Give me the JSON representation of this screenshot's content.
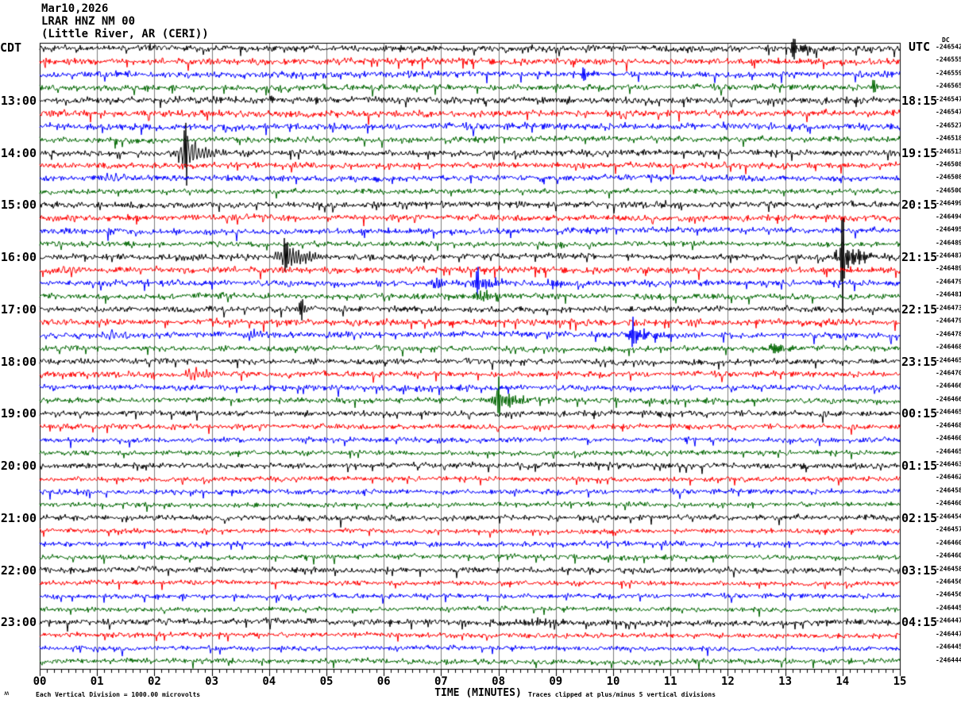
{
  "title": {
    "date": "Mar10,2026",
    "station": "LRAR HNZ NM 00",
    "location": "(Little River, AR (CERI))"
  },
  "axes": {
    "left_tz": "CDT",
    "right_tz": "UTC",
    "dc": "DC",
    "corner_mark": "ʍ"
  },
  "footer": {
    "left": "Each Vertical Division = 1000.00 microvolts",
    "right": "Traces clipped at plus/minus 5 vertical divisions"
  },
  "chart_data": {
    "type": "line",
    "subtype": "helicorder-seismogram",
    "title": "LRAR HNZ NM 00 (Little River, AR (CERI)) Mar10,2026",
    "xlabel": "TIME (MINUTES)",
    "x_range": [
      0,
      15
    ],
    "minutes_per_line": 15,
    "x_tick_labels": [
      "00",
      "01",
      "02",
      "03",
      "04",
      "05",
      "06",
      "07",
      "08",
      "09",
      "10",
      "11",
      "12",
      "13",
      "14",
      "15"
    ],
    "grid": "vertical-minute-lines",
    "trace_colors": {
      "black": "#000000",
      "red": "#ff0000",
      "blue": "#0000ff",
      "green": "#006600"
    },
    "left_hour_labels": [
      {
        "row": 4,
        "label": "13:00"
      },
      {
        "row": 8,
        "label": "14:00"
      },
      {
        "row": 12,
        "label": "15:00"
      },
      {
        "row": 16,
        "label": "16:00"
      },
      {
        "row": 20,
        "label": "17:00"
      },
      {
        "row": 24,
        "label": "18:00"
      },
      {
        "row": 28,
        "label": "19:00"
      },
      {
        "row": 32,
        "label": "20:00"
      },
      {
        "row": 36,
        "label": "21:00"
      },
      {
        "row": 40,
        "label": "22:00"
      },
      {
        "row": 44,
        "label": "23:00"
      }
    ],
    "right_hour_labels": [
      {
        "row": 4,
        "label": "18:15"
      },
      {
        "row": 8,
        "label": "19:15"
      },
      {
        "row": 12,
        "label": "20:15"
      },
      {
        "row": 16,
        "label": "21:15"
      },
      {
        "row": 20,
        "label": "22:15"
      },
      {
        "row": 24,
        "label": "23:15"
      },
      {
        "row": 28,
        "label": "00:15"
      },
      {
        "row": 32,
        "label": "01:15"
      },
      {
        "row": 36,
        "label": "02:15"
      },
      {
        "row": 40,
        "label": "03:15"
      },
      {
        "row": 44,
        "label": "04:15"
      }
    ],
    "rows": [
      {
        "color": "black",
        "offset": "-246542",
        "noise": 2.6,
        "events": [
          {
            "t": 13.15,
            "amp": 6,
            "dur": 0.3,
            "spike": 11
          }
        ]
      },
      {
        "color": "red",
        "offset": "-246555",
        "noise": 2.6,
        "events": []
      },
      {
        "color": "blue",
        "offset": "-246559",
        "noise": 2.6,
        "events": [
          {
            "t": 9.5,
            "amp": 7,
            "dur": 0.22,
            "spike": 12
          }
        ]
      },
      {
        "color": "green",
        "offset": "-246565",
        "noise": 2.4,
        "events": [
          {
            "t": 14.55,
            "amp": 4,
            "dur": 0.08,
            "spike": 9
          }
        ]
      },
      {
        "color": "black",
        "offset": "-246547",
        "noise": 2.8,
        "events": [
          {
            "t": 2.35,
            "amp": 3,
            "dur": 0.2
          },
          {
            "t": 8.65,
            "amp": 3,
            "dur": 0.3
          }
        ]
      },
      {
        "color": "red",
        "offset": "-246547",
        "noise": 2.8,
        "events": []
      },
      {
        "color": "blue",
        "offset": "-246527",
        "noise": 2.8,
        "events": []
      },
      {
        "color": "green",
        "offset": "-246518",
        "noise": 2.4,
        "events": []
      },
      {
        "color": "black",
        "offset": "-246513",
        "noise": 2.5,
        "events": [
          {
            "t": 2.55,
            "amp": 16,
            "dur": 0.35,
            "spike": 44
          }
        ]
      },
      {
        "color": "red",
        "offset": "-246508",
        "noise": 2.4,
        "events": []
      },
      {
        "color": "blue",
        "offset": "-246508",
        "noise": 2.5,
        "events": [
          {
            "t": 1.2,
            "amp": 5,
            "dur": 0.2
          }
        ]
      },
      {
        "color": "green",
        "offset": "-246500",
        "noise": 2.2,
        "events": []
      },
      {
        "color": "black",
        "offset": "-246499",
        "noise": 2.5,
        "events": [
          {
            "t": 10.8,
            "amp": 4,
            "dur": 0.15
          }
        ]
      },
      {
        "color": "red",
        "offset": "-246494",
        "noise": 2.5,
        "events": []
      },
      {
        "color": "blue",
        "offset": "-246495",
        "noise": 2.5,
        "events": []
      },
      {
        "color": "green",
        "offset": "-246489",
        "noise": 2.2,
        "events": []
      },
      {
        "color": "black",
        "offset": "-246487",
        "noise": 2.5,
        "events": [
          {
            "t": 4.3,
            "amp": 15,
            "dur": 0.4,
            "spike": 28
          },
          {
            "t": 14.0,
            "amp": 16,
            "dur": 0.32,
            "spike": -55
          }
        ]
      },
      {
        "color": "red",
        "offset": "-246489",
        "noise": 2.6,
        "events": [
          {
            "t": 0.45,
            "amp": 5,
            "dur": 0.35
          }
        ]
      },
      {
        "color": "blue",
        "offset": "-246479",
        "noise": 2.5,
        "events": [
          {
            "t": 6.85,
            "amp": 6,
            "dur": 0.25
          },
          {
            "t": 7.65,
            "amp": 11,
            "dur": 0.3,
            "spike": 22
          },
          {
            "t": 8.9,
            "amp": 6,
            "dur": 0.2
          }
        ]
      },
      {
        "color": "green",
        "offset": "-246481",
        "noise": 2.3,
        "events": [
          {
            "t": 7.7,
            "amp": 6,
            "dur": 0.4
          }
        ]
      },
      {
        "color": "black",
        "offset": "-246473",
        "noise": 2.5,
        "events": [
          {
            "t": 4.55,
            "amp": 7,
            "dur": 0.07,
            "spike": 15
          }
        ]
      },
      {
        "color": "red",
        "offset": "-246479",
        "noise": 2.8,
        "events": []
      },
      {
        "color": "blue",
        "offset": "-246478",
        "noise": 2.5,
        "events": [
          {
            "t": 1.2,
            "amp": 6,
            "dur": 0.3
          },
          {
            "t": 3.65,
            "amp": 6,
            "dur": 0.25
          },
          {
            "t": 10.35,
            "amp": 11,
            "dur": 0.3,
            "spike": 25
          }
        ]
      },
      {
        "color": "green",
        "offset": "-246468",
        "noise": 2.3,
        "events": [
          {
            "t": 12.75,
            "amp": 8,
            "dur": 0.3
          }
        ]
      },
      {
        "color": "black",
        "offset": "-246465",
        "noise": 2.4,
        "events": []
      },
      {
        "color": "red",
        "offset": "-246470",
        "noise": 2.3,
        "events": [
          {
            "t": 2.65,
            "amp": 9,
            "dur": 0.3
          }
        ]
      },
      {
        "color": "blue",
        "offset": "-246466",
        "noise": 2.4,
        "events": []
      },
      {
        "color": "green",
        "offset": "-246466",
        "noise": 2.2,
        "events": [
          {
            "t": 8.0,
            "amp": 12,
            "dur": 0.35,
            "spike": 19
          }
        ]
      },
      {
        "color": "black",
        "offset": "-246465",
        "noise": 2.4,
        "events": [
          {
            "t": 11.0,
            "amp": 3,
            "dur": 0.15
          }
        ]
      },
      {
        "color": "red",
        "offset": "-246468",
        "noise": 2.1,
        "events": []
      },
      {
        "color": "blue",
        "offset": "-246460",
        "noise": 2.1,
        "events": []
      },
      {
        "color": "green",
        "offset": "-246465",
        "noise": 2.0,
        "events": []
      },
      {
        "color": "black",
        "offset": "-246463",
        "noise": 2.4,
        "events": []
      },
      {
        "color": "red",
        "offset": "-246462",
        "noise": 2.0,
        "events": []
      },
      {
        "color": "blue",
        "offset": "-246458",
        "noise": 2.1,
        "events": []
      },
      {
        "color": "green",
        "offset": "-246460",
        "noise": 2.0,
        "events": []
      },
      {
        "color": "black",
        "offset": "-246454",
        "noise": 2.4,
        "events": [
          {
            "t": 14.85,
            "amp": 3,
            "dur": 0.1
          }
        ]
      },
      {
        "color": "red",
        "offset": "-246457",
        "noise": 2.0,
        "events": []
      },
      {
        "color": "blue",
        "offset": "-246460",
        "noise": 2.2,
        "events": []
      },
      {
        "color": "green",
        "offset": "-246460",
        "noise": 2.0,
        "events": []
      },
      {
        "color": "black",
        "offset": "-246458",
        "noise": 2.4,
        "events": []
      },
      {
        "color": "red",
        "offset": "-246456",
        "noise": 2.0,
        "events": []
      },
      {
        "color": "blue",
        "offset": "-246456",
        "noise": 2.0,
        "events": []
      },
      {
        "color": "green",
        "offset": "-246445",
        "noise": 2.0,
        "events": []
      },
      {
        "color": "black",
        "offset": "-246447",
        "noise": 2.5,
        "events": [
          {
            "t": 8.3,
            "amp": 3,
            "dur": 1.2
          }
        ]
      },
      {
        "color": "red",
        "offset": "-246447",
        "noise": 2.0,
        "events": []
      },
      {
        "color": "blue",
        "offset": "-246445",
        "noise": 2.0,
        "events": [
          {
            "t": 4.3,
            "amp": 3,
            "dur": 0.07
          }
        ]
      },
      {
        "color": "green",
        "offset": "-246444",
        "noise": 2.3,
        "events": []
      }
    ]
  }
}
